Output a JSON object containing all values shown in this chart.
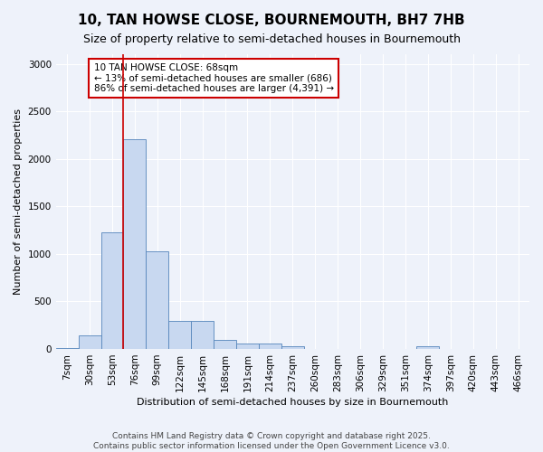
{
  "title": "10, TAN HOWSE CLOSE, BOURNEMOUTH, BH7 7HB",
  "subtitle": "Size of property relative to semi-detached houses in Bournemouth",
  "xlabel": "Distribution of semi-detached houses by size in Bournemouth",
  "ylabel": "Number of semi-detached properties",
  "bar_color": "#c8d8f0",
  "bar_edge_color": "#5585bb",
  "bg_color": "#eef2fa",
  "grid_color": "#ffffff",
  "property_line_color": "#cc0000",
  "property_size": 68,
  "pct_smaller": 13,
  "pct_larger": 86,
  "count_smaller": 686,
  "count_larger": 4391,
  "annotation_box_color": "#cc0000",
  "bins": [
    7,
    30,
    53,
    76,
    99,
    122,
    145,
    168,
    191,
    214,
    237,
    260,
    283,
    306,
    329,
    351,
    374,
    397,
    420,
    443,
    466
  ],
  "bin_labels": [
    "7sqm",
    "30sqm",
    "53sqm",
    "76sqm",
    "99sqm",
    "122sqm",
    "145sqm",
    "168sqm",
    "191sqm",
    "214sqm",
    "237sqm",
    "260sqm",
    "283sqm",
    "306sqm",
    "329sqm",
    "351sqm",
    "374sqm",
    "397sqm",
    "420sqm",
    "443sqm",
    "466sqm"
  ],
  "counts": [
    10,
    140,
    1230,
    2210,
    1030,
    295,
    295,
    100,
    55,
    55,
    25,
    5,
    5,
    0,
    0,
    0,
    25,
    0,
    0,
    0,
    0
  ],
  "ylim": [
    0,
    3100
  ],
  "yticks": [
    0,
    500,
    1000,
    1500,
    2000,
    2500,
    3000
  ],
  "footer": "Contains HM Land Registry data © Crown copyright and database right 2025.\nContains public sector information licensed under the Open Government Licence v3.0.",
  "title_fontsize": 11,
  "subtitle_fontsize": 9,
  "axis_label_fontsize": 8,
  "tick_fontsize": 7.5,
  "footer_fontsize": 6.5,
  "ann_fontsize": 7.5
}
